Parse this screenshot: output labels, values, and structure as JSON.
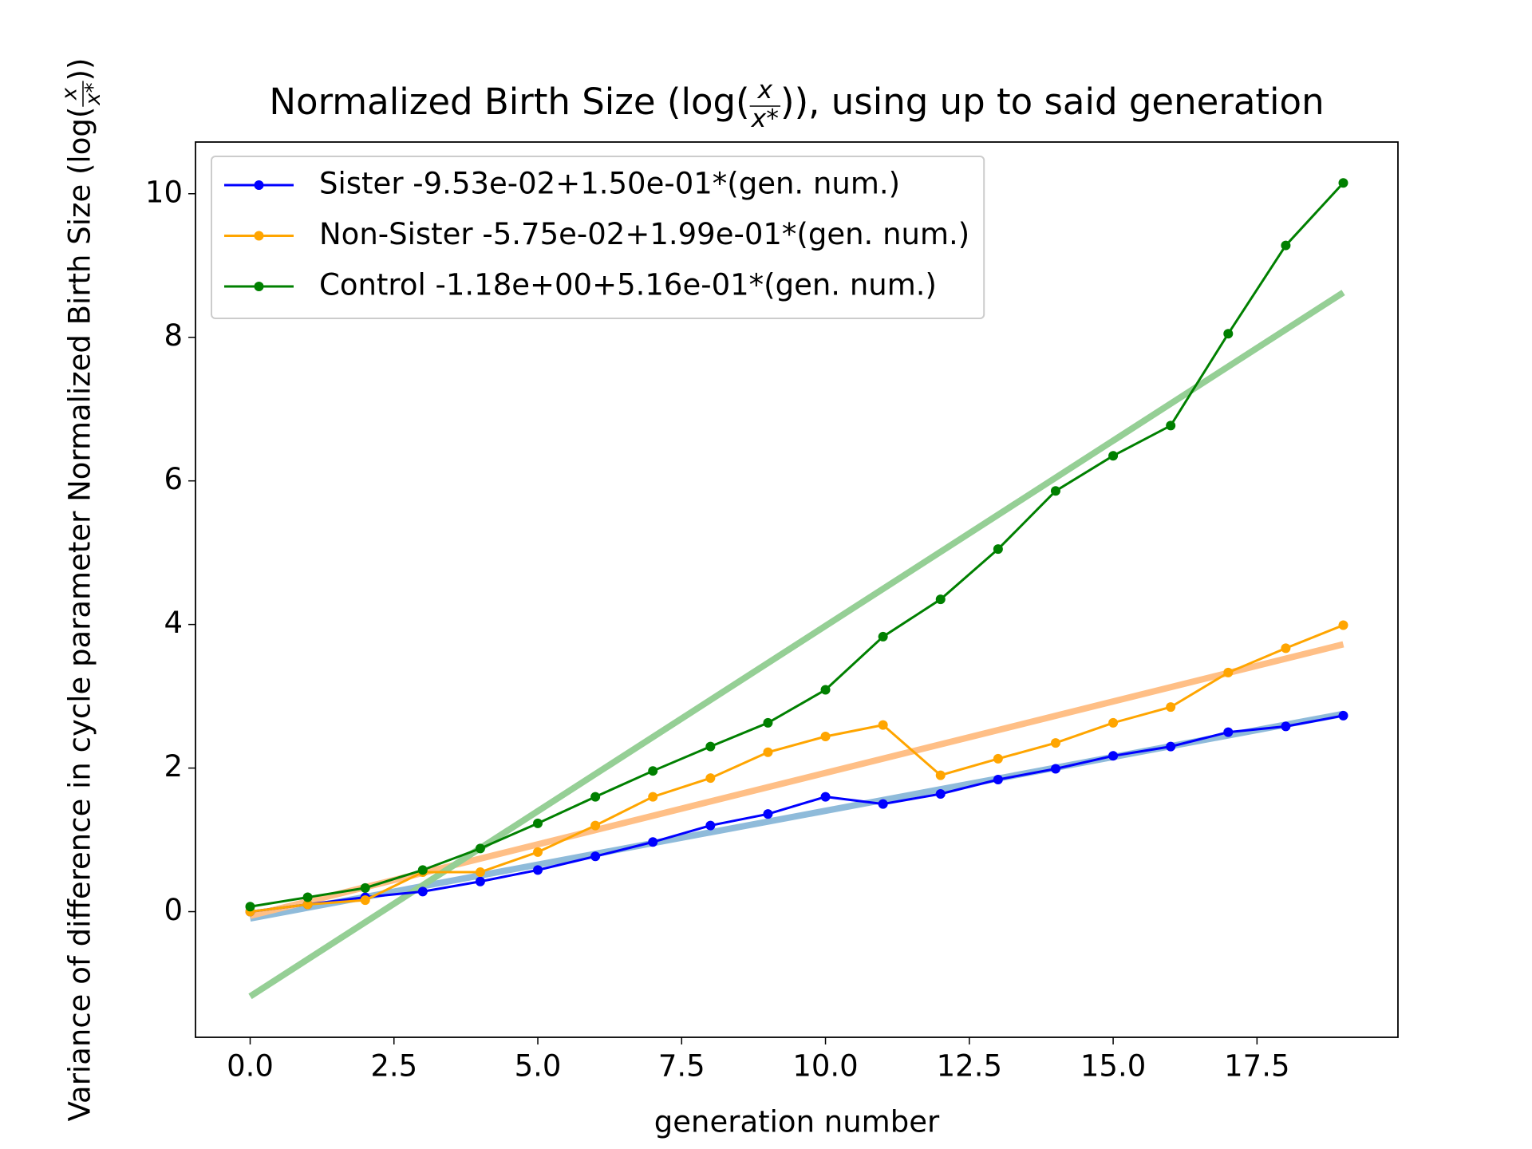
{
  "chart_data": {
    "type": "line",
    "title": {
      "prefix": "Normalized Birth Size (log(",
      "numerator": "x",
      "denominator": "x*",
      "suffix": ")), using up to said generation"
    },
    "xlabel": "generation number",
    "ylabel": {
      "prefix": "Variance of difference in cycle parameter Normalized Birth Size (log(",
      "numerator": "x",
      "denominator": "x*",
      "suffix": "))"
    },
    "x": [
      0,
      1,
      2,
      3,
      4,
      5,
      6,
      7,
      8,
      9,
      10,
      11,
      12,
      13,
      14,
      15,
      16,
      17,
      18,
      19
    ],
    "series": [
      {
        "name": "Sister -9.53e-02+1.50e-01*(gen. num.)",
        "color": "#0000ff",
        "values": [
          0.0,
          0.1,
          0.2,
          0.28,
          0.42,
          0.58,
          0.77,
          0.97,
          1.2,
          1.36,
          1.6,
          1.5,
          1.64,
          1.84,
          1.99,
          2.17,
          2.3,
          2.5,
          2.58,
          2.73
        ],
        "fit": {
          "intercept": -0.0953,
          "slope": 0.15,
          "color": "#8fbbda"
        }
      },
      {
        "name": "Non-Sister -5.75e-02+1.99e-01*(gen. num.)",
        "color": "#ffa500",
        "values": [
          0.0,
          0.1,
          0.16,
          0.55,
          0.55,
          0.83,
          1.2,
          1.6,
          1.86,
          2.22,
          2.44,
          2.6,
          1.9,
          2.13,
          2.35,
          2.63,
          2.85,
          3.33,
          3.67,
          3.99
        ],
        "fit": {
          "intercept": -0.0575,
          "slope": 0.199,
          "color": "#ffbf86"
        }
      },
      {
        "name": "Control -1.18e+00+5.16e-01*(gen. num.)",
        "color": "#008000",
        "values": [
          0.07,
          0.2,
          0.33,
          0.58,
          0.88,
          1.23,
          1.6,
          1.96,
          2.3,
          2.63,
          3.09,
          3.83,
          4.35,
          5.05,
          5.86,
          6.35,
          6.77,
          8.05,
          9.28,
          10.15
        ],
        "fit": {
          "intercept": -1.18,
          "slope": 0.516,
          "color": "#95cf95"
        }
      }
    ],
    "xlim": [
      -0.95,
      19.95
    ],
    "ylim": [
      -1.75,
      10.72
    ],
    "xticks": [
      {
        "value": 0,
        "label": "0.0"
      },
      {
        "value": 2.5,
        "label": "2.5"
      },
      {
        "value": 5,
        "label": "5.0"
      },
      {
        "value": 7.5,
        "label": "7.5"
      },
      {
        "value": 10,
        "label": "10.0"
      },
      {
        "value": 12.5,
        "label": "12.5"
      },
      {
        "value": 15,
        "label": "15.0"
      },
      {
        "value": 17.5,
        "label": "17.5"
      }
    ],
    "yticks": [
      0,
      2,
      4,
      6,
      8,
      10
    ],
    "grid": false,
    "legend": "upper left"
  }
}
